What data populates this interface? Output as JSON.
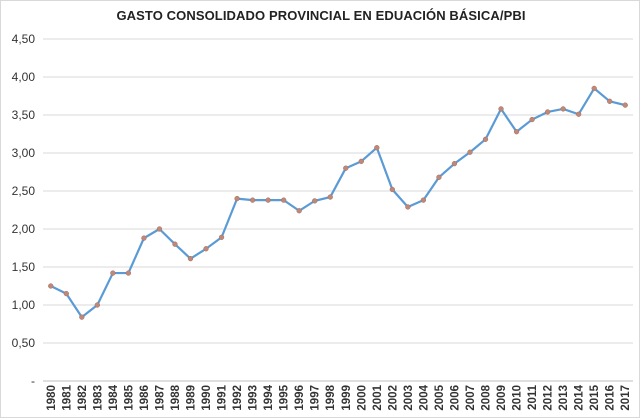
{
  "chart_data": {
    "type": "line",
    "title": "GASTO CONSOLIDADO PROVINCIAL EN EDUACIÓN BÁSICA/PBI",
    "xlabel": "",
    "ylabel": "",
    "ylim": [
      0,
      4.5
    ],
    "yticks": [
      "-",
      "0,50",
      "1,00",
      "1,50",
      "2,00",
      "2,50",
      "3,00",
      "3,50",
      "4,00",
      "4,50"
    ],
    "grid": true,
    "legend": "none",
    "line_color": "#5b9bd5",
    "marker_color": "#c08878",
    "categories": [
      "1980",
      "1981",
      "1982",
      "1983",
      "1984",
      "1985",
      "1986",
      "1987",
      "1988",
      "1989",
      "1990",
      "1991",
      "1992",
      "1993",
      "1994",
      "1995",
      "1996",
      "1997",
      "1998",
      "1999",
      "2000",
      "2001",
      "2002",
      "2003",
      "2004",
      "2005",
      "2006",
      "2007",
      "2008",
      "2009",
      "2010",
      "2011",
      "2012",
      "2013",
      "2014",
      "2015",
      "2016",
      "2017"
    ],
    "values": [
      1.25,
      1.15,
      0.84,
      1.0,
      1.42,
      1.42,
      1.88,
      2.0,
      1.8,
      1.61,
      1.74,
      1.89,
      2.4,
      2.38,
      2.38,
      2.38,
      2.24,
      2.37,
      2.42,
      2.8,
      2.89,
      3.07,
      2.52,
      2.29,
      2.38,
      2.68,
      2.86,
      3.01,
      3.18,
      3.58,
      3.28,
      3.44,
      3.54,
      3.58,
      3.51,
      3.85,
      3.68,
      3.63
    ]
  }
}
